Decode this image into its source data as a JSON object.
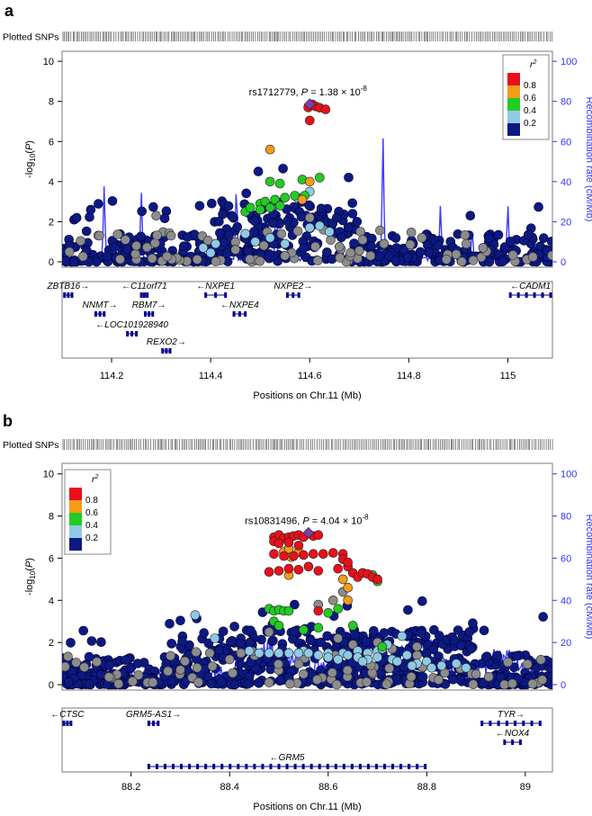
{
  "colors": {
    "r2_0.8_1.0": "#e8101a",
    "r2_0.6_0.8": "#f59c1a",
    "r2_0.4_0.6": "#22cc22",
    "r2_0.2_0.4": "#8ecae6",
    "r2_0.0_0.2": "#0c1a80",
    "r2_na": "#8c8c8c",
    "lead": "#7b3fa8",
    "recomb": "#3b3bff",
    "right_axis": "#3333ff",
    "gene": "#00008b"
  },
  "chart_data": [
    {
      "type": "scatter",
      "panel_label": "a",
      "plotted_snps_label": "Plotted SNPs",
      "xlabel": "Positions on Chr.11 (Mb)",
      "ylabel_left": "-log10(P)",
      "ylabel_right": "Recombination rate (cM/Mb)",
      "xlim": [
        114.1,
        115.09
      ],
      "xticks": [
        "114.2",
        "114.4",
        "114.6",
        "114.8",
        "115"
      ],
      "ylim": [
        0,
        10.5
      ],
      "yticks": [
        "0",
        "2",
        "4",
        "6",
        "8",
        "10"
      ],
      "y2lim": [
        0,
        100
      ],
      "y2ticks": [
        "0",
        "20",
        "40",
        "60",
        "80",
        "100"
      ],
      "legend": {
        "title": "r²",
        "position": "top-right",
        "labels": [
          "0.8",
          "0.6",
          "0.4",
          "0.2"
        ]
      },
      "lead_snp": {
        "label": "rs1712779",
        "p_text": "P = 1.38 × 10",
        "p_exp": "-8",
        "x": 114.6,
        "y": 7.86
      },
      "recomb_peaks": [
        {
          "x": 114.185,
          "y": 39
        },
        {
          "x": 114.26,
          "y": 37
        },
        {
          "x": 114.452,
          "y": 42
        },
        {
          "x": 114.532,
          "y": 33
        },
        {
          "x": 114.748,
          "y": 65
        },
        {
          "x": 114.864,
          "y": 30
        },
        {
          "x": 114.928,
          "y": 18
        },
        {
          "x": 115.0,
          "y": 31
        }
      ],
      "snp_groups": [
        {
          "r2": "0.8_1.0",
          "points": [
            [
              114.597,
              7.7
            ],
            [
              114.605,
              7.85
            ],
            [
              114.612,
              7.75
            ],
            [
              114.62,
              7.68
            ],
            [
              114.632,
              7.6
            ],
            [
              114.6,
              7.05
            ]
          ]
        },
        {
          "r2": "0.6_0.8",
          "points": [
            [
              114.52,
              5.6
            ],
            [
              114.6,
              4.0
            ],
            [
              114.585,
              3.1
            ]
          ]
        },
        {
          "r2": "0.4_0.6",
          "points": [
            [
              114.52,
              4.0
            ],
            [
              114.54,
              3.9
            ],
            [
              114.62,
              4.2
            ],
            [
              114.585,
              4.1
            ],
            [
              114.47,
              2.5
            ],
            [
              114.48,
              2.7
            ],
            [
              114.5,
              2.9
            ],
            [
              114.51,
              3.0
            ],
            [
              114.53,
              3.1
            ],
            [
              114.55,
              3.2
            ],
            [
              114.57,
              3.3
            ],
            [
              114.59,
              3.3
            ],
            [
              114.5,
              2.6
            ],
            [
              114.52,
              2.7
            ],
            [
              114.54,
              2.8
            ]
          ]
        },
        {
          "r2": "0.2_0.4",
          "points": [
            [
              114.6,
              3.5
            ],
            [
              114.575,
              3.2
            ],
            [
              114.385,
              0.7
            ],
            [
              114.41,
              0.9
            ],
            [
              114.4,
              0.45
            ],
            [
              114.49,
              1.0
            ],
            [
              114.55,
              0.9
            ],
            [
              114.6,
              1.7
            ],
            [
              114.62,
              1.8
            ],
            [
              114.64,
              1.5
            ],
            [
              114.52,
              1.2
            ],
            [
              114.47,
              1.4
            ]
          ]
        },
        {
          "r2": "na",
          "points": [
            [
              114.29,
              2.3
            ],
            [
              114.32,
              1.3
            ],
            [
              114.45,
              0.6
            ],
            [
              114.7,
              0.55
            ],
            [
              114.55,
              0.3
            ],
            [
              114.75,
              0.9
            ],
            [
              114.95,
              0.7
            ],
            [
              114.25,
              0.8
            ],
            [
              114.6,
              2.2
            ],
            [
              114.66,
              0.75
            ]
          ]
        }
      ],
      "genes": [
        {
          "name": "ZBTB16",
          "start": 114.105,
          "end": 114.12,
          "dir": "right",
          "row": 0
        },
        {
          "name": "C11orf71",
          "start": 114.26,
          "end": 114.272,
          "dir": "left",
          "row": 0
        },
        {
          "name": "NXPE1",
          "start": 114.39,
          "end": 114.43,
          "dir": "left",
          "row": 0
        },
        {
          "name": "NXPE2",
          "start": 114.555,
          "end": 114.578,
          "dir": "right",
          "row": 0
        },
        {
          "name": "CADM1",
          "start": 115.005,
          "end": 115.09,
          "dir": "left",
          "row": 0
        },
        {
          "name": "NNMT",
          "start": 114.168,
          "end": 114.185,
          "dir": "right",
          "row": 1
        },
        {
          "name": "RBM7",
          "start": 114.268,
          "end": 114.283,
          "dir": "right",
          "row": 1
        },
        {
          "name": "NXPE4",
          "start": 114.447,
          "end": 114.47,
          "dir": "left",
          "row": 1
        },
        {
          "name": "LOC101928940",
          "start": 114.232,
          "end": 114.25,
          "dir": "left",
          "row": 2
        },
        {
          "name": "REXO2",
          "start": 114.303,
          "end": 114.318,
          "dir": "right",
          "row": 3
        }
      ]
    },
    {
      "type": "scatter",
      "panel_label": "b",
      "plotted_snps_label": "Plotted SNPs",
      "xlabel": "Positions on Chr.11 (Mb)",
      "ylabel_left": "-log10(P)",
      "ylabel_right": "Recombination rate (cM/Mb)",
      "xlim": [
        88.06,
        89.055
      ],
      "xticks": [
        "88.2",
        "88.4",
        "88.6",
        "88.8",
        "89"
      ],
      "ylim": [
        0,
        10.5
      ],
      "yticks": [
        "0",
        "2",
        "4",
        "6",
        "8",
        "10"
      ],
      "y2lim": [
        0,
        100
      ],
      "y2ticks": [
        "0",
        "20",
        "40",
        "60",
        "80",
        "100"
      ],
      "legend": {
        "title": "r²",
        "position": "top-left",
        "labels": [
          "0.8",
          "0.6",
          "0.4",
          "0.2"
        ]
      },
      "lead_snp": {
        "label": "rs10831496",
        "p_text": "P = 4.04 × 10",
        "p_exp": "-8",
        "x": 88.56,
        "y": 7.2
      },
      "recomb_peaks": [],
      "snp_groups": [
        {
          "r2": "0.8_1.0",
          "points": [
            [
              88.49,
              7.0
            ],
            [
              88.5,
              7.1
            ],
            [
              88.51,
              6.95
            ],
            [
              88.52,
              7.0
            ],
            [
              88.53,
              7.05
            ],
            [
              88.54,
              7.1
            ],
            [
              88.55,
              7.0
            ],
            [
              88.57,
              7.05
            ],
            [
              88.58,
              7.1
            ],
            [
              88.49,
              6.8
            ],
            [
              88.5,
              6.7
            ],
            [
              88.52,
              6.75
            ],
            [
              88.54,
              6.6
            ],
            [
              88.49,
              6.2
            ],
            [
              88.51,
              6.1
            ],
            [
              88.53,
              6.1
            ],
            [
              88.55,
              6.15
            ],
            [
              88.57,
              6.2
            ],
            [
              88.59,
              6.2
            ],
            [
              88.61,
              6.25
            ],
            [
              88.63,
              6.2
            ],
            [
              88.5,
              5.4
            ],
            [
              88.52,
              5.5
            ],
            [
              88.54,
              5.45
            ],
            [
              88.56,
              5.6
            ],
            [
              88.58,
              5.4
            ],
            [
              88.62,
              5.5
            ],
            [
              88.64,
              5.6
            ],
            [
              88.65,
              5.3
            ],
            [
              88.66,
              5.1
            ],
            [
              88.67,
              5.3
            ],
            [
              88.68,
              5.25
            ],
            [
              88.69,
              5.1
            ],
            [
              88.7,
              5.0
            ],
            [
              88.63,
              5.95
            ],
            [
              88.64,
              5.8
            ],
            [
              88.48,
              5.35
            ],
            [
              88.58,
              3.5
            ]
          ]
        },
        {
          "r2": "0.6_0.8",
          "points": [
            [
              88.51,
              6.3
            ],
            [
              88.525,
              6.05
            ],
            [
              88.54,
              6.3
            ],
            [
              88.52,
              5.2
            ],
            [
              88.64,
              4.6
            ],
            [
              88.63,
              5.0
            ],
            [
              88.64,
              4.0
            ],
            [
              88.52,
              6.45
            ]
          ]
        },
        {
          "r2": "0.4_0.6",
          "points": [
            [
              88.48,
              3.6
            ],
            [
              88.49,
              3.5
            ],
            [
              88.5,
              3.55
            ],
            [
              88.51,
              3.5
            ],
            [
              88.52,
              3.5
            ],
            [
              88.49,
              3.0
            ],
            [
              88.5,
              2.8
            ],
            [
              88.6,
              3.4
            ],
            [
              88.62,
              3.6
            ],
            [
              88.55,
              2.6
            ],
            [
              88.58,
              2.7
            ],
            [
              88.65,
              2.8
            ],
            [
              88.71,
              1.8
            ],
            [
              88.69,
              5.2
            ],
            [
              88.7,
              4.9
            ]
          ]
        },
        {
          "r2": "0.2_0.4",
          "points": [
            [
              88.33,
              3.3
            ],
            [
              88.37,
              2.2
            ],
            [
              88.55,
              1.6
            ],
            [
              88.6,
              1.5
            ],
            [
              88.63,
              1.5
            ],
            [
              88.66,
              1.6
            ],
            [
              88.68,
              1.5
            ],
            [
              88.7,
              1.6
            ],
            [
              88.72,
              1.9
            ],
            [
              88.75,
              2.3
            ],
            [
              88.78,
              1.0
            ],
            [
              88.8,
              1.1
            ],
            [
              88.83,
              0.9
            ],
            [
              88.86,
              1.0
            ],
            [
              88.88,
              0.8
            ],
            [
              88.76,
              1.4
            ],
            [
              88.73,
              1.2
            ],
            [
              88.7,
              1.3
            ],
            [
              88.68,
              1.2
            ],
            [
              88.66,
              1.3
            ],
            [
              88.64,
              1.4
            ],
            [
              88.62,
              1.2
            ],
            [
              88.6,
              1.3
            ],
            [
              88.58,
              1.4
            ],
            [
              88.56,
              1.5
            ],
            [
              88.54,
              1.5
            ],
            [
              88.52,
              1.5
            ],
            [
              88.5,
              1.5
            ],
            [
              88.48,
              1.5
            ],
            [
              88.46,
              1.5
            ],
            [
              88.44,
              1.6
            ],
            [
              88.67,
              1.1
            ],
            [
              88.71,
              1.7
            ],
            [
              88.74,
              1.1
            ],
            [
              88.77,
              0.9
            ],
            [
              88.81,
              0.8
            ]
          ]
        },
        {
          "r2": "na",
          "points": [
            [
              88.58,
              3.8
            ],
            [
              88.61,
              4.0
            ],
            [
              88.65,
              1.9
            ],
            [
              88.7,
              2.0
            ],
            [
              88.73,
              1.7
            ],
            [
              88.78,
              1.8
            ],
            [
              88.62,
              2.2
            ],
            [
              88.48,
              2.5
            ],
            [
              88.63,
              4.4
            ],
            [
              88.36,
              1.5
            ],
            [
              88.4,
              1.2
            ],
            [
              88.3,
              0.7
            ],
            [
              88.55,
              0.5
            ],
            [
              88.9,
              0.5
            ]
          ]
        }
      ],
      "genes": [
        {
          "name": "CTSC",
          "start": 88.062,
          "end": 88.078,
          "dir": "left",
          "row": 0
        },
        {
          "name": "GRM5-AS1",
          "start": 88.236,
          "end": 88.255,
          "dir": "right",
          "row": 0
        },
        {
          "name": "TYR",
          "start": 88.912,
          "end": 89.03,
          "dir": "right",
          "row": 0
        },
        {
          "name": "NOX4",
          "start": 88.958,
          "end": 88.99,
          "dir": "left",
          "row": 1
        },
        {
          "name": "GRM5",
          "start": 88.236,
          "end": 88.797,
          "dir": "left",
          "row": 2
        }
      ]
    }
  ]
}
